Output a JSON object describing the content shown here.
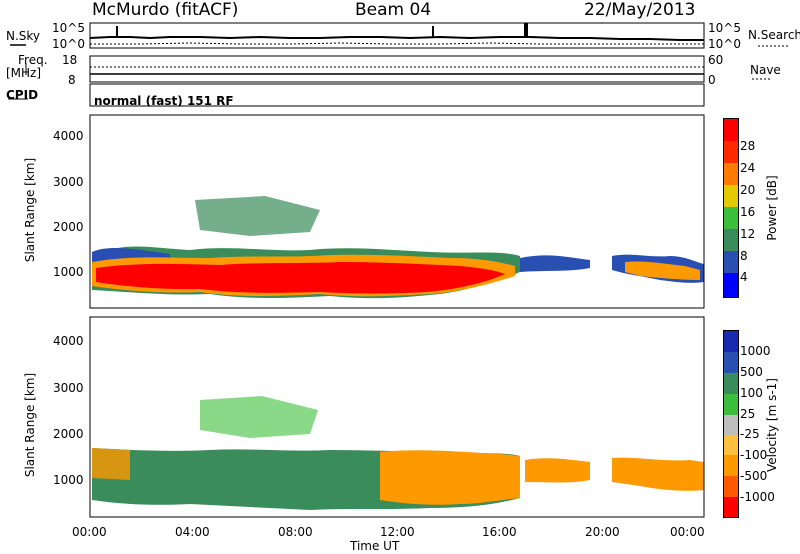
{
  "header": {
    "title": "McMurdo (fitACF)",
    "beam": "Beam 04",
    "date": "22/May/2013"
  },
  "noise_panel": {
    "left_label": "N.Sky",
    "right_label": "N.Search",
    "left_ticks": [
      "10^5",
      "10^0"
    ],
    "right_ticks": [
      "10^5",
      "10^0"
    ]
  },
  "freq_panel": {
    "left_label": "Freq.",
    "left_unit": "[MHz]",
    "left_ticks": [
      "18",
      "8"
    ],
    "right_label": "Nave",
    "right_ticks": [
      "60",
      "0"
    ]
  },
  "cpid_panel": {
    "label": "CPID",
    "mode_text": "normal (fast) 151 RF"
  },
  "colors": {
    "power": [
      "#0000ff",
      "#2a4fb2",
      "#3a8c5a",
      "#3bbf3b",
      "#e6c800",
      "#ff9900",
      "#ff5a00",
      "#ff0000"
    ],
    "velocity": [
      "#ff0000",
      "#ff5a00",
      "#ff9900",
      "#ffc040",
      "#bebebe",
      "#3bbf3b",
      "#3a8c5a",
      "#2a4fb2",
      "#1a2ab0"
    ]
  },
  "chart_data": [
    {
      "type": "heatmap",
      "name": "power",
      "ylabel": "Slant Range [km]",
      "y_ticks": [
        "1000",
        "2000",
        "3000",
        "4000"
      ],
      "colorbar_label": "Power [dB]",
      "colorbar_ticks": [
        "4",
        "8",
        "12",
        "16",
        "20",
        "24",
        "28"
      ],
      "ylim": [
        180,
        4500
      ]
    },
    {
      "type": "heatmap",
      "name": "velocity",
      "ylabel": "Slant Range [km]",
      "y_ticks": [
        "1000",
        "2000",
        "3000",
        "4000"
      ],
      "colorbar_label": "Velocity [m s-1]",
      "colorbar_ticks": [
        "1000",
        "500",
        "100",
        "25",
        "-25",
        "-100",
        "-500",
        "-1000"
      ],
      "xlabel": "Time UT",
      "x_ticks": [
        "00:00",
        "04:00",
        "08:00",
        "12:00",
        "16:00",
        "20:00",
        "00:00"
      ],
      "ylim": [
        180,
        4500
      ]
    }
  ]
}
